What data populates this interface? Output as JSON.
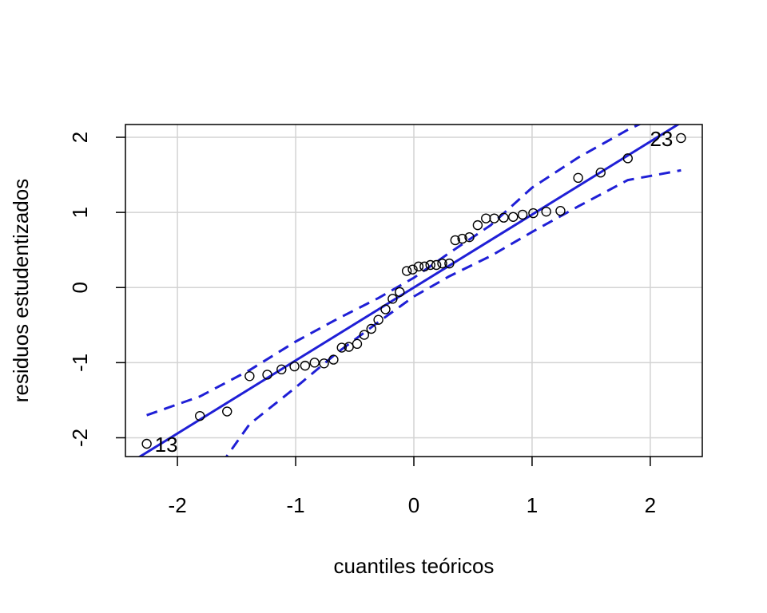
{
  "chart_data": {
    "type": "scatter",
    "title": "",
    "xlabel": "cuantiles teóricos",
    "ylabel": "residuos estudentizados",
    "xlim": [
      -2.44,
      2.44
    ],
    "ylim": [
      -2.25,
      2.17
    ],
    "xticks": [
      -2,
      -1,
      0,
      1,
      2
    ],
    "yticks": [
      -2,
      -1,
      0,
      1,
      2
    ],
    "xtick_labels": [
      "-2",
      "-1",
      "0",
      "1",
      "2"
    ],
    "ytick_labels": [
      "-2",
      "-1",
      "0",
      "1",
      "2"
    ],
    "grid": true,
    "colors": {
      "line": "#1f1fd6",
      "band": "#1f1fd6",
      "grid": "#d3d3d3",
      "points": "#000000"
    },
    "points": {
      "x": [
        -2.26,
        -1.81,
        -1.58,
        -1.39,
        -1.24,
        -1.12,
        -1.01,
        -0.92,
        -0.84,
        -0.76,
        -0.68,
        -0.61,
        -0.55,
        -0.48,
        -0.42,
        -0.36,
        -0.3,
        -0.24,
        -0.18,
        -0.12,
        -0.06,
        -0.01,
        0.04,
        0.09,
        0.14,
        0.19,
        0.24,
        0.3,
        0.35,
        0.41,
        0.47,
        0.54,
        0.61,
        0.68,
        0.76,
        0.84,
        0.92,
        1.01,
        1.12,
        1.24,
        1.39,
        1.58,
        1.81,
        2.26
      ],
      "y": [
        -2.08,
        -1.71,
        -1.65,
        -1.18,
        -1.16,
        -1.09,
        -1.05,
        -1.04,
        -1.0,
        -1.01,
        -0.96,
        -0.8,
        -0.79,
        -0.75,
        -0.63,
        -0.55,
        -0.43,
        -0.29,
        -0.15,
        -0.06,
        0.22,
        0.24,
        0.28,
        0.28,
        0.3,
        0.3,
        0.32,
        0.32,
        0.63,
        0.65,
        0.67,
        0.83,
        0.92,
        0.92,
        0.93,
        0.94,
        0.97,
        0.99,
        1.01,
        1.02,
        1.46,
        1.53,
        1.72,
        1.99
      ]
    },
    "fit_line": {
      "x": [
        -2.44,
        2.44
      ],
      "y": [
        -2.37,
        2.37
      ]
    },
    "upper_band": {
      "x": [
        -2.26,
        -1.81,
        -1.39,
        -1.0,
        -0.65,
        -0.3,
        0.0,
        0.3,
        0.65,
        1.0,
        1.39,
        1.81,
        2.17
      ],
      "y": [
        -1.7,
        -1.45,
        -1.1,
        -0.72,
        -0.42,
        -0.14,
        0.13,
        0.46,
        0.83,
        1.33,
        1.73,
        2.1,
        2.37
      ]
    },
    "lower_band": {
      "x": [
        -1.81,
        -1.39,
        -1.0,
        -0.65,
        -0.3,
        0.0,
        0.3,
        0.65,
        1.0,
        1.39,
        1.81,
        2.26
      ],
      "y": [
        -2.75,
        -1.82,
        -1.33,
        -0.87,
        -0.46,
        -0.12,
        0.15,
        0.42,
        0.74,
        1.08,
        1.43,
        1.56
      ]
    },
    "labels": [
      {
        "text": "13",
        "x": -2.26,
        "y": -2.08,
        "side": "right"
      },
      {
        "text": "23",
        "x": 2.26,
        "y": 1.99,
        "side": "left"
      }
    ]
  }
}
